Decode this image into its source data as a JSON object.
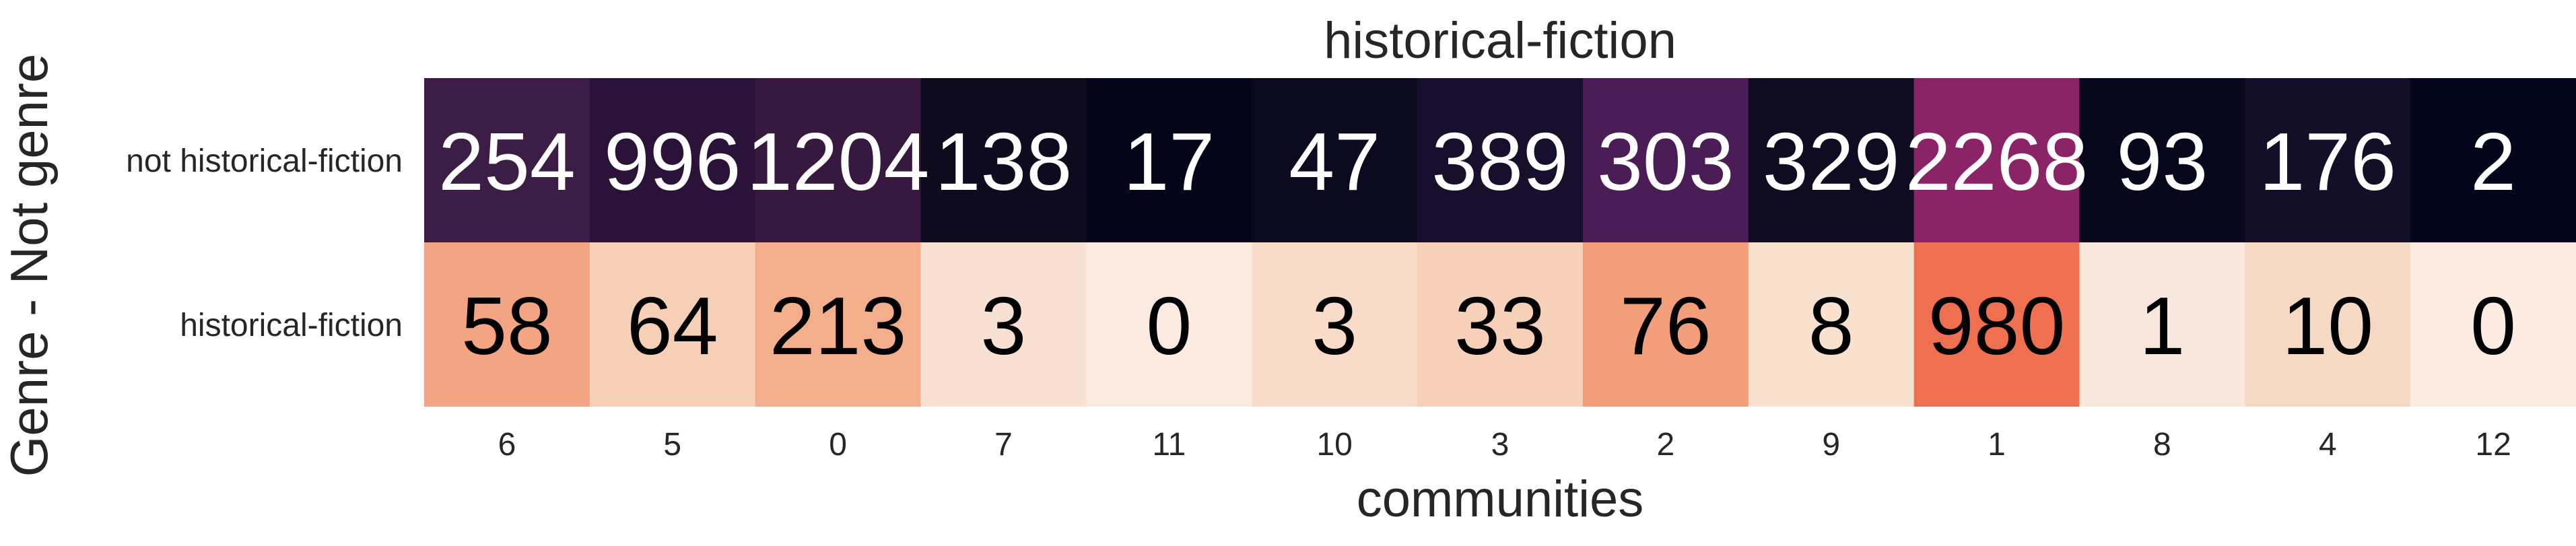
{
  "chart_data": {
    "type": "heatmap",
    "title": "historical-fiction",
    "xlabel": "communities",
    "ylabel": "Genre - Not genre",
    "x_categories": [
      "6",
      "5",
      "0",
      "7",
      "11",
      "10",
      "3",
      "2",
      "9",
      "1",
      "8",
      "4",
      "12"
    ],
    "y_categories": [
      "not historical-fiction",
      "historical-fiction"
    ],
    "values": [
      [
        254,
        996,
        1204,
        138,
        17,
        47,
        389,
        303,
        329,
        2268,
        93,
        176,
        2
      ],
      [
        58,
        64,
        213,
        3,
        0,
        3,
        33,
        76,
        8,
        980,
        1,
        10,
        0
      ]
    ],
    "colors": {
      "not historical-fiction": [
        "#3c1d46",
        "#2a1239",
        "#371940",
        "#0f0b1e",
        "#040519",
        "#0c0a1f",
        "#180f2d",
        "#4a1d56",
        "#0f0b21",
        "#8a2467",
        "#07071c",
        "#130f29",
        "#03051a"
      ],
      "historical-fiction": [
        "#f3a482",
        "#f5cfb6",
        "#f4ae8b",
        "#f8e1d3",
        "#fbeadf",
        "#f8dbc8",
        "#f6d0b8",
        "#f39e7b",
        "#f8e1cf",
        "#ef7050",
        "#f8e7dc",
        "#f5d9c4",
        "#fbebe0"
      ]
    },
    "text_colors": {
      "not historical-fiction": "#ffffff",
      "historical-fiction": "#000000"
    },
    "colorbar": false
  }
}
